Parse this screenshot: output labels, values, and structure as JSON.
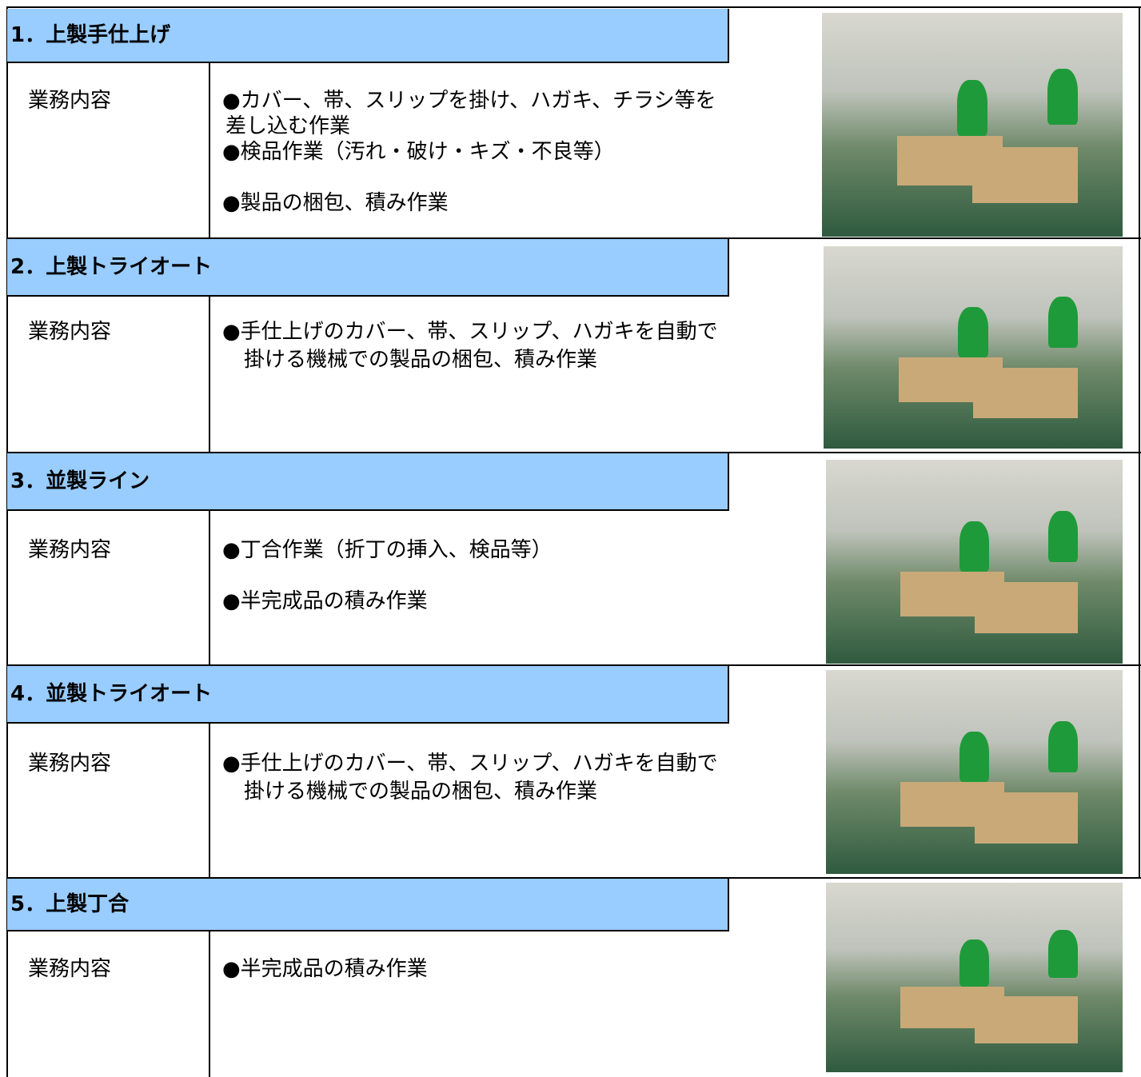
{
  "sections": [
    {
      "title": "1．上製手仕上げ",
      "label": "業務内容",
      "lines": [
        "●カバー、帯、スリップを掛け、ハガキ、チラシ等を",
        "差し込む作業",
        "●検品作業（汚れ・破け・キズ・不良等）",
        "●製品の梱包、積み作業"
      ]
    },
    {
      "title": "2．上製トライオート",
      "label": "業務内容",
      "lines": [
        "●手仕上げのカバー、帯、スリップ、ハガキを自動で",
        "掛ける機械での製品の梱包、積み作業"
      ]
    },
    {
      "title": "3．並製ライン",
      "label": "業務内容",
      "lines": [
        "●丁合作業（折丁の挿入、検品等）",
        "●半完成品の積み作業"
      ]
    },
    {
      "title": "4．並製トライオート",
      "label": "業務内容",
      "lines": [
        "●手仕上げのカバー、帯、スリップ、ハガキを自動で",
        "掛ける機械での製品の梱包、積み作業"
      ]
    },
    {
      "title": "5．上製丁合",
      "label": "業務内容",
      "lines": [
        "●半完成品の積み作業"
      ]
    }
  ]
}
